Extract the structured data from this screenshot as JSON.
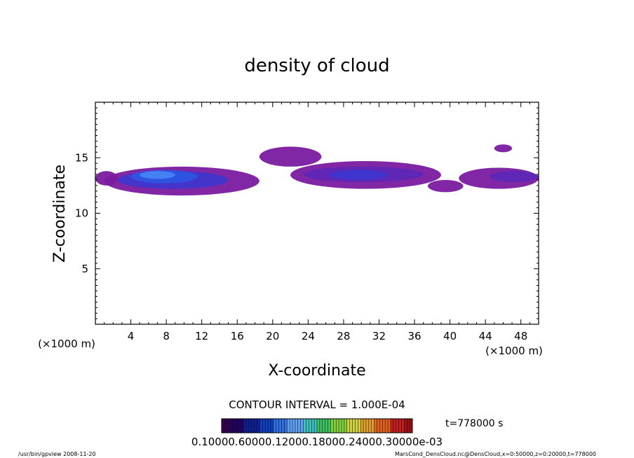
{
  "chart_data": {
    "type": "heatmap",
    "title": "density of cloud",
    "xlabel": "X-coordinate",
    "ylabel": "Z-coordinate",
    "x_unit_label": "(×1000 m)",
    "x_unit_label_right": "(×1000 m)",
    "xlim": [
      0,
      50
    ],
    "ylim": [
      0,
      20
    ],
    "x_ticks": [
      4,
      8,
      12,
      16,
      20,
      24,
      28,
      32,
      36,
      40,
      44,
      48
    ],
    "y_ticks": [
      5,
      10,
      15
    ],
    "contour_interval": "CONTOUR INTERVAL = 1.000E-04",
    "time_label": "t=778000 s",
    "colorbar_labels_text": "0.10000.60000.12000.18000.24000.30000e-03",
    "colorbar_colors": [
      "#3a0050",
      "#220060",
      "#102090",
      "#1040c0",
      "#3070e0",
      "#60a0f0",
      "#40c0c0",
      "#40c060",
      "#80d040",
      "#d0d040",
      "#e0a030",
      "#e06020",
      "#c02020",
      "#a01010"
    ],
    "cloud_regions": [
      {
        "x": [
          0,
          2.5
        ],
        "z": [
          12.5,
          13.8
        ],
        "level": 1
      },
      {
        "x": [
          1.0,
          18.5
        ],
        "z": [
          11.6,
          14.2
        ],
        "level": 1
      },
      {
        "x": [
          2.5,
          15.0
        ],
        "z": [
          12.2,
          13.8
        ],
        "level": 3
      },
      {
        "x": [
          4.0,
          11.5
        ],
        "z": [
          12.7,
          13.9
        ],
        "level": 4
      },
      {
        "x": [
          5.0,
          9.0
        ],
        "z": [
          13.1,
          13.8
        ],
        "level": 5
      },
      {
        "x": [
          18.5,
          25.5
        ],
        "z": [
          14.2,
          16.0
        ],
        "level": 1
      },
      {
        "x": [
          22.0,
          39.0
        ],
        "z": [
          12.2,
          14.7
        ],
        "level": 1
      },
      {
        "x": [
          23.5,
          37.0
        ],
        "z": [
          12.8,
          14.2
        ],
        "level": 2
      },
      {
        "x": [
          26.5,
          33.0
        ],
        "z": [
          13.0,
          13.9
        ],
        "level": 3
      },
      {
        "x": [
          37.5,
          41.5
        ],
        "z": [
          11.9,
          13.0
        ],
        "level": 1
      },
      {
        "x": [
          41.0,
          50.0
        ],
        "z": [
          12.2,
          14.1
        ],
        "level": 1
      },
      {
        "x": [
          44.5,
          50.0
        ],
        "z": [
          12.8,
          13.8
        ],
        "level": 2
      },
      {
        "x": [
          45.0,
          47.0
        ],
        "z": [
          15.5,
          16.2
        ],
        "level": 1
      }
    ]
  },
  "footer": {
    "left": "/usr/bin/gpview  2008-11-20",
    "right": "MarsCond_DensCloud.nc@DensCloud,x=0:50000,z=0:20000,t=778000"
  }
}
